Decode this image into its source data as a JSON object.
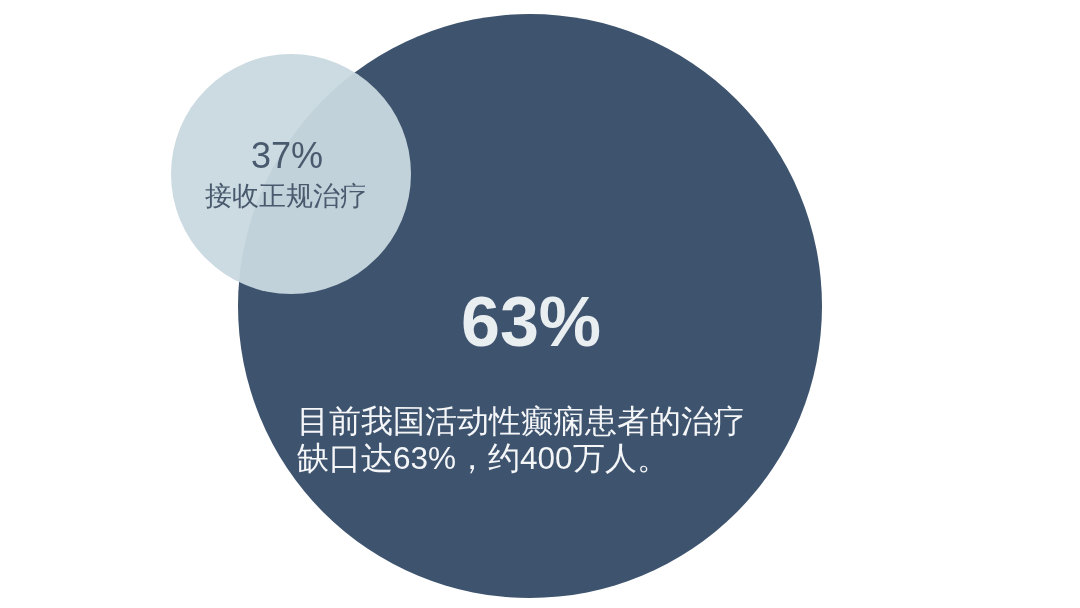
{
  "chart_data": {
    "type": "other",
    "categories": [
      "接收正规治疗",
      null
    ],
    "values": [
      37,
      63
    ],
    "value_labels": [
      "37%",
      "63%"
    ],
    "colors": [
      "#c9d9df",
      "#3e536e"
    ],
    "annotations": [
      "目前我国活动性癫痫患者的治疗缺口达63%，约400万人。"
    ]
  }
}
